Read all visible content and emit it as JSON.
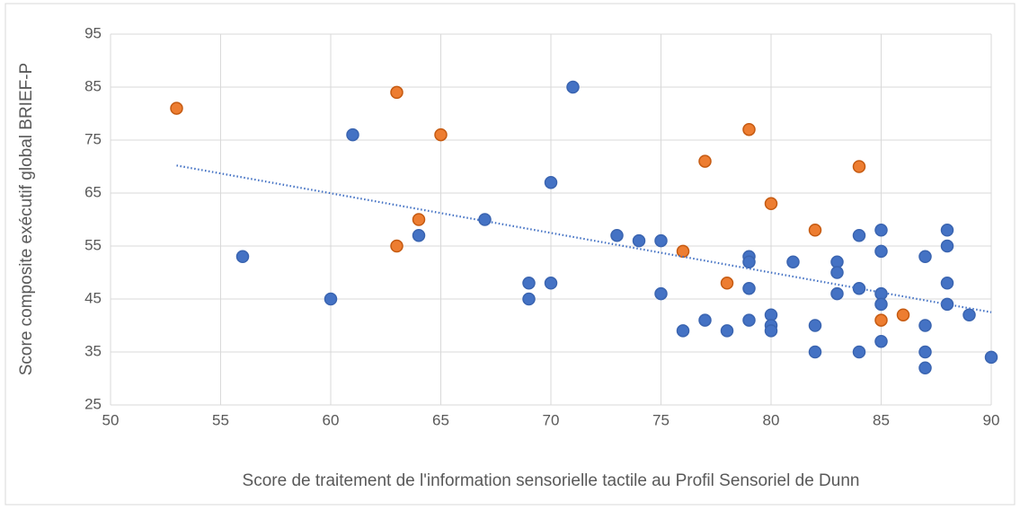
{
  "chart_data": {
    "type": "scatter",
    "x_label": "Score de traitement de l'information sensorielle tactile au Profil Sensoriel de Dunn",
    "y_label": "Score composite exécutif global BRIEF-P",
    "xlim": [
      50,
      90
    ],
    "xticks": [
      50,
      55,
      60,
      65,
      70,
      75,
      80,
      85,
      90
    ],
    "ylim": [
      25,
      95
    ],
    "yticks": [
      25,
      35,
      45,
      55,
      65,
      75,
      85,
      95
    ],
    "grid": true,
    "series": [
      {
        "color": "#4472c4",
        "x": [
          56,
          60,
          61,
          64,
          67,
          69,
          69,
          70,
          70,
          71,
          73,
          74,
          75,
          75,
          76,
          77,
          78,
          79,
          79,
          79,
          79,
          80,
          80,
          80,
          81,
          82,
          82,
          83,
          83,
          83,
          84,
          84,
          84,
          85,
          85,
          85,
          85,
          85,
          87,
          87,
          87,
          87,
          88,
          88,
          88,
          88,
          89,
          90
        ],
        "values": [
          53,
          45,
          76,
          57,
          60,
          48,
          45,
          67,
          48,
          85,
          57,
          56,
          56,
          46,
          39,
          41,
          39,
          53,
          52,
          47,
          41,
          42,
          40,
          39,
          52,
          40,
          35,
          52,
          50,
          46,
          57,
          47,
          35,
          58,
          54,
          46,
          44,
          37,
          53,
          40,
          35,
          32,
          58,
          55,
          48,
          44,
          42,
          34
        ]
      },
      {
        "color": "#ed7d31",
        "x": [
          53,
          63,
          63,
          64,
          65,
          76,
          77,
          78,
          79,
          80,
          82,
          84,
          85,
          86
        ],
        "values": [
          81,
          84,
          55,
          60,
          76,
          54,
          71,
          48,
          77,
          63,
          58,
          70,
          41,
          42
        ]
      }
    ],
    "trendline": {
      "color": "#4472c4",
      "x": [
        53,
        90
      ],
      "y": [
        70.2,
        42.5
      ]
    }
  }
}
